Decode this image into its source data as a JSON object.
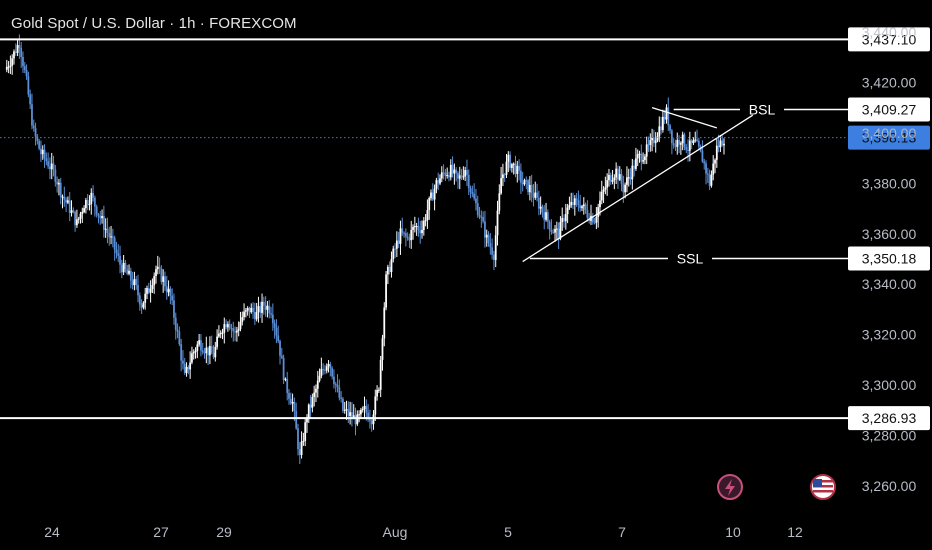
{
  "header": {
    "title": "Gold Spot / U.S. Dollar · 1h · FOREXCOM"
  },
  "colors": {
    "background": "#000000",
    "candle_up": "#ffffff",
    "candle_down": "#5b8fd6",
    "current_price_badge": "#3d7fe0",
    "level_line": "#ffffff",
    "badge_bg": "#ffffff"
  },
  "icons": {
    "flash": "lightning-bolt-icon",
    "flag": "us-flag-icon"
  },
  "chart_data": {
    "type": "candlestick",
    "symbol": "XAUUSD",
    "timeframe": "1h",
    "y_axis": {
      "ticks": [
        3260,
        3280,
        3300,
        3320,
        3340,
        3360,
        3380,
        3400,
        3420,
        3440
      ],
      "tick_labels": [
        "3,260.00",
        "3,280.00",
        "3,300.00",
        "3,320.00",
        "3,340.00",
        "3,360.00",
        "3,380.00",
        "3,400.00",
        "3,420.00",
        "3,440.00"
      ],
      "position": "right",
      "range": [
        3252,
        3447
      ]
    },
    "x_axis": {
      "tick_labels": [
        "24",
        "27",
        "29",
        "Aug",
        "5",
        "7",
        "10",
        "12"
      ]
    },
    "price_levels": [
      {
        "value": 3437.1,
        "label": "3,437.10"
      },
      {
        "value": 3409.27,
        "label": "3,409.27",
        "annotation": "BSL"
      },
      {
        "value": 3350.18,
        "label": "3,350.18",
        "annotation": "SSL"
      },
      {
        "value": 3286.93,
        "label": "3,286.93"
      }
    ],
    "current_price": {
      "value": 3398.13,
      "label": "3,398.13"
    },
    "close_path": [
      [
        0,
        3425
      ],
      [
        1,
        3430
      ],
      [
        2,
        3436
      ],
      [
        3,
        3420
      ],
      [
        4,
        3400
      ],
      [
        5,
        3392
      ],
      [
        6,
        3388
      ],
      [
        7,
        3383
      ],
      [
        8,
        3375
      ],
      [
        9,
        3370
      ],
      [
        10,
        3364
      ],
      [
        11,
        3372
      ],
      [
        12,
        3375
      ],
      [
        13,
        3368
      ],
      [
        14,
        3362
      ],
      [
        15,
        3356
      ],
      [
        16,
        3348
      ],
      [
        17,
        3344
      ],
      [
        18,
        3340
      ],
      [
        19,
        3332
      ],
      [
        20,
        3338
      ],
      [
        21,
        3346
      ],
      [
        22,
        3342
      ],
      [
        23,
        3335
      ],
      [
        24,
        3320
      ],
      [
        25,
        3303
      ],
      [
        26,
        3312
      ],
      [
        27,
        3317
      ],
      [
        28,
        3314
      ],
      [
        29,
        3312
      ],
      [
        30,
        3322
      ],
      [
        31,
        3326
      ],
      [
        32,
        3320
      ],
      [
        33,
        3327
      ],
      [
        34,
        3330
      ],
      [
        35,
        3328
      ],
      [
        36,
        3332
      ],
      [
        37,
        3330
      ],
      [
        38,
        3318
      ],
      [
        39,
        3300
      ],
      [
        40,
        3293
      ],
      [
        41,
        3271
      ],
      [
        42,
        3288
      ],
      [
        43,
        3296
      ],
      [
        44,
        3305
      ],
      [
        45,
        3310
      ],
      [
        46,
        3300
      ],
      [
        47,
        3290
      ],
      [
        48,
        3288
      ],
      [
        49,
        3286
      ],
      [
        50,
        3290
      ],
      [
        51,
        3287
      ],
      [
        52,
        3300
      ],
      [
        53,
        3342
      ],
      [
        54,
        3352
      ],
      [
        55,
        3360
      ],
      [
        56,
        3358
      ],
      [
        57,
        3363
      ],
      [
        58,
        3362
      ],
      [
        59,
        3372
      ],
      [
        60,
        3380
      ],
      [
        61,
        3384
      ],
      [
        62,
        3385
      ],
      [
        63,
        3381
      ],
      [
        64,
        3386
      ],
      [
        65,
        3375
      ],
      [
        66,
        3368
      ],
      [
        67,
        3358
      ],
      [
        68,
        3352
      ],
      [
        69,
        3382
      ],
      [
        70,
        3389
      ],
      [
        71,
        3386
      ],
      [
        72,
        3380
      ],
      [
        73,
        3378
      ],
      [
        74,
        3373
      ],
      [
        75,
        3368
      ],
      [
        76,
        3362
      ],
      [
        77,
        3360
      ],
      [
        78,
        3369
      ],
      [
        79,
        3372
      ],
      [
        80,
        3372
      ],
      [
        81,
        3368
      ],
      [
        82,
        3366
      ],
      [
        83,
        3375
      ],
      [
        84,
        3382
      ],
      [
        85,
        3385
      ],
      [
        86,
        3378
      ],
      [
        87,
        3384
      ],
      [
        88,
        3390
      ],
      [
        89,
        3392
      ],
      [
        90,
        3396
      ],
      [
        91,
        3402
      ],
      [
        92,
        3408
      ],
      [
        93,
        3395
      ],
      [
        94,
        3398
      ],
      [
        95,
        3394
      ],
      [
        96,
        3396
      ],
      [
        97,
        3390
      ],
      [
        98,
        3380
      ],
      [
        99,
        3394
      ],
      [
        100,
        3398
      ]
    ],
    "trendlines": [
      {
        "name": "support",
        "from": [
          72,
          3349
        ],
        "to": [
          104,
          3407
        ]
      },
      {
        "name": "resistance",
        "from": [
          90,
          3410
        ],
        "to": [
          99,
          3402
        ]
      }
    ],
    "grid": false
  }
}
